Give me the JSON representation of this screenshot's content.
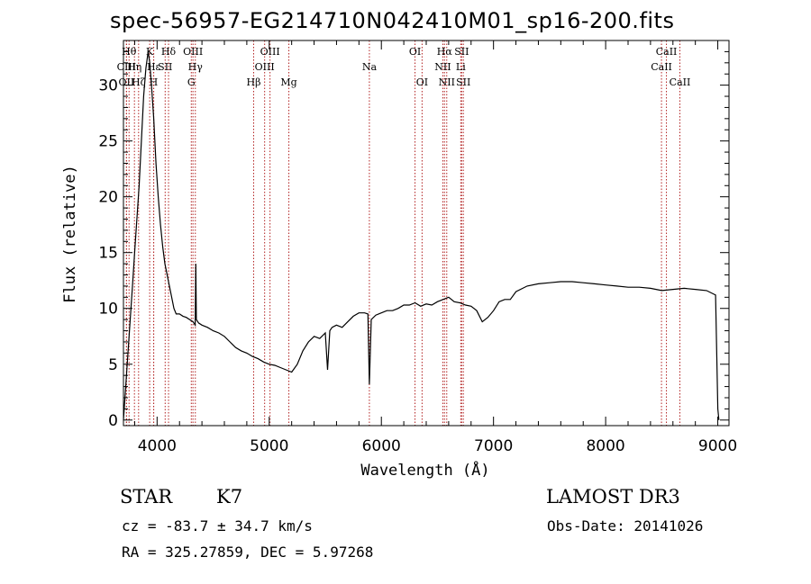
{
  "chart_data": {
    "type": "line",
    "title": "spec-56957-EG214710N042410M01_sp16-200.fits",
    "xlabel": "Wavelength (Å)",
    "ylabel": "Flux (relative)",
    "xlim": [
      3700,
      9100
    ],
    "ylim": [
      -0.5,
      34
    ],
    "x_ticks": [
      4000,
      5000,
      6000,
      7000,
      8000,
      9000
    ],
    "y_ticks": [
      0,
      5,
      10,
      15,
      20,
      25,
      30
    ],
    "grid": false,
    "series": [
      {
        "x": [
          3700,
          3720,
          3740,
          3760,
          3780,
          3800,
          3820,
          3840,
          3860,
          3880,
          3900,
          3920,
          3935,
          3950,
          3970,
          3990,
          4010,
          4030,
          4050,
          4070,
          4090,
          4110,
          4130,
          4150,
          4170,
          4200,
          4230,
          4260,
          4290,
          4320,
          4340,
          4345,
          4350,
          4370,
          4400,
          4450,
          4500,
          4550,
          4600,
          4650,
          4700,
          4750,
          4800,
          4850,
          4900,
          4950,
          5000,
          5050,
          5100,
          5150,
          5200,
          5250,
          5300,
          5350,
          5400,
          5450,
          5500,
          5520,
          5540,
          5560,
          5600,
          5650,
          5700,
          5750,
          5800,
          5850,
          5880,
          5893,
          5910,
          5950,
          6000,
          6050,
          6100,
          6150,
          6200,
          6250,
          6300,
          6350,
          6400,
          6450,
          6500,
          6550,
          6600,
          6650,
          6700,
          6750,
          6800,
          6850,
          6900,
          6950,
          7000,
          7050,
          7100,
          7150,
          7200,
          7300,
          7400,
          7500,
          7600,
          7700,
          7800,
          7900,
          8000,
          8100,
          8200,
          8300,
          8400,
          8500,
          8600,
          8700,
          8800,
          8900,
          8980,
          9000,
          9010
        ],
        "y": [
          0,
          3,
          6,
          9,
          12,
          15,
          18,
          21,
          25,
          29,
          31.5,
          33,
          32,
          30,
          27,
          23,
          20,
          17.5,
          15.5,
          14,
          13,
          12,
          11,
          10,
          9.5,
          9.5,
          9.3,
          9.2,
          9.0,
          8.8,
          8.5,
          14,
          9,
          8.7,
          8.5,
          8.3,
          8.0,
          7.8,
          7.5,
          7.0,
          6.5,
          6.2,
          6.0,
          5.7,
          5.5,
          5.2,
          5.0,
          4.9,
          4.7,
          4.5,
          4.3,
          5.0,
          6.2,
          7.0,
          7.5,
          7.3,
          7.8,
          4.5,
          8.0,
          8.3,
          8.5,
          8.3,
          8.8,
          9.3,
          9.6,
          9.6,
          9.5,
          3.2,
          9.0,
          9.4,
          9.6,
          9.8,
          9.8,
          10.0,
          10.3,
          10.3,
          10.5,
          10.2,
          10.4,
          10.3,
          10.6,
          10.8,
          11.0,
          10.6,
          10.5,
          10.3,
          10.2,
          9.8,
          8.8,
          9.2,
          9.8,
          10.6,
          10.8,
          10.8,
          11.5,
          12.0,
          12.2,
          12.3,
          12.4,
          12.4,
          12.3,
          12.2,
          12.1,
          12.0,
          11.9,
          11.9,
          11.8,
          11.6,
          11.7,
          11.8,
          11.7,
          11.6,
          11.2,
          1.0,
          0
        ]
      }
    ],
    "lines": [
      {
        "name": "CIII",
        "x": 3727,
        "row": 1
      },
      {
        "name": "OII",
        "x": 3727,
        "row": 2
      },
      {
        "name": "Hθ",
        "x": 3750,
        "row": 0
      },
      {
        "name": "Hη",
        "x": 3798,
        "row": 1
      },
      {
        "name": "Hζ",
        "x": 3835,
        "row": 2
      },
      {
        "name": "K",
        "x": 3934,
        "row": 0
      },
      {
        "name": "H",
        "x": 3969,
        "row": 2
      },
      {
        "name": "Hε",
        "x": 3970,
        "row": 1
      },
      {
        "name": "SII",
        "x": 4072,
        "row": 1
      },
      {
        "name": "Hδ",
        "x": 4102,
        "row": 0
      },
      {
        "name": "OIII",
        "x": 4320,
        "row": 0
      },
      {
        "name": "Hγ",
        "x": 4341,
        "row": 1
      },
      {
        "name": "G",
        "x": 4305,
        "row": 2
      },
      {
        "name": "Hβ",
        "x": 4861,
        "row": 2
      },
      {
        "name": "OIII",
        "x": 4959,
        "row": 1
      },
      {
        "name": "OIII",
        "x": 5007,
        "row": 0
      },
      {
        "name": "Mg",
        "x": 5175,
        "row": 2
      },
      {
        "name": "Na",
        "x": 5893,
        "row": 1
      },
      {
        "name": "OI",
        "x": 6300,
        "row": 0
      },
      {
        "name": "OI",
        "x": 6363,
        "row": 2
      },
      {
        "name": "NII",
        "x": 6548,
        "row": 1
      },
      {
        "name": "Hα",
        "x": 6563,
        "row": 0
      },
      {
        "name": "NII",
        "x": 6583,
        "row": 2
      },
      {
        "name": "Li",
        "x": 6708,
        "row": 1
      },
      {
        "name": "SII",
        "x": 6716,
        "row": 0
      },
      {
        "name": "SII",
        "x": 6731,
        "row": 2
      },
      {
        "name": "CaII",
        "x": 8498,
        "row": 1
      },
      {
        "name": "CaII",
        "x": 8542,
        "row": 0
      },
      {
        "name": "CaII",
        "x": 8662,
        "row": 2
      }
    ]
  },
  "info": {
    "class_label": "STAR",
    "subclass": "K7",
    "cz_line": "cz = -83.7 ± 34.7 km/s",
    "radec_line": "RA = 325.27859, DEC =   5.97268",
    "survey": "LAMOST DR3",
    "obs_date": "Obs-Date: 20141026"
  },
  "colors": {
    "axis": "#000000",
    "spectrum": "#000000",
    "line_marker": "#b22222"
  }
}
